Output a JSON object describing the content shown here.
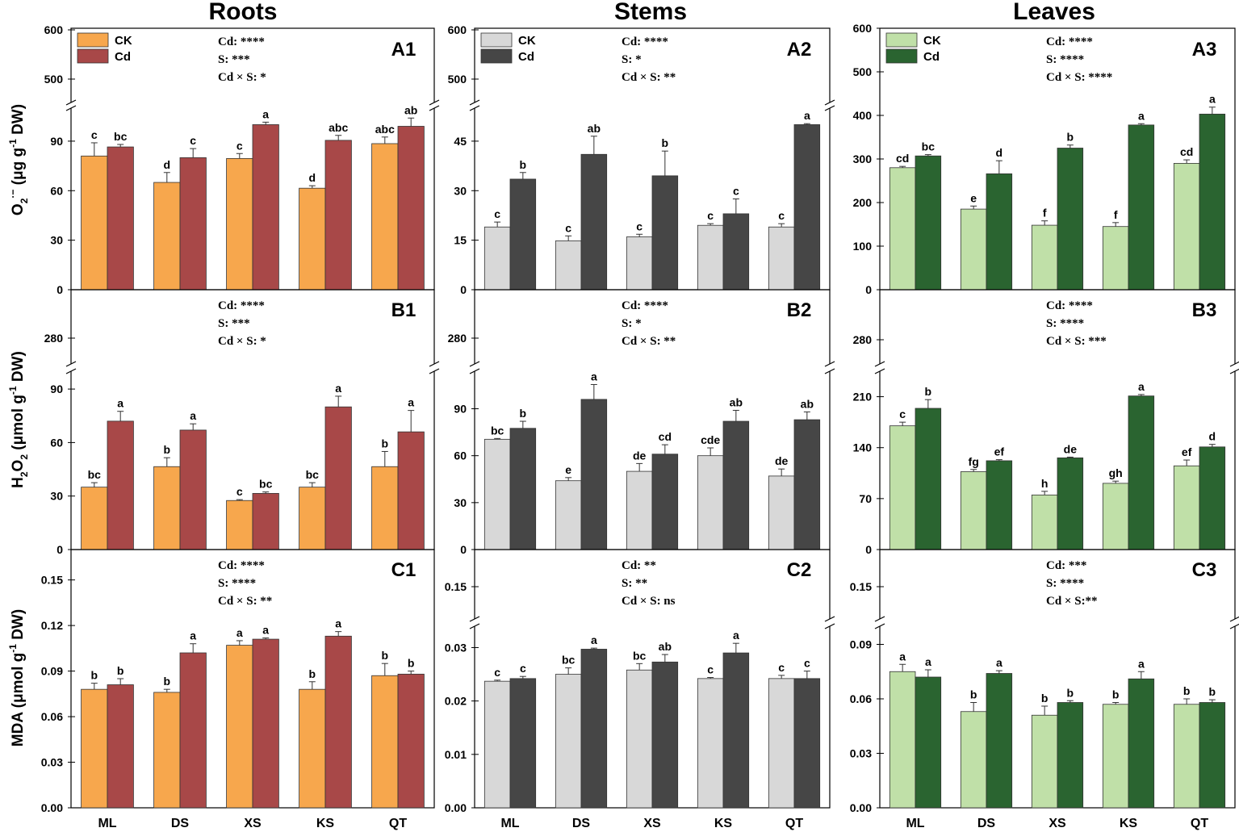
{
  "columns": [
    "Roots",
    "Stems",
    "Leaves"
  ],
  "y_axis_titles": [
    {
      "prefix": "O",
      "sub": "2",
      "sup": "·−",
      "mid": " (μg g",
      "sup2": "-1",
      "suffix": " DW)"
    },
    {
      "prefix": "H",
      "sub": "2",
      "mid2": "O",
      "sub2": "2",
      "mid": " (μmol g",
      "sup2": "-1",
      "suffix": " DW)"
    },
    {
      "prefix": "MDA",
      "mid": " (μmol g",
      "sup2": "-1",
      "suffix": " DW)"
    }
  ],
  "legend": {
    "ck": "CK",
    "cd": "Cd"
  },
  "colors": {
    "Roots": {
      "ck": "#f7a74d",
      "cd": "#a84848"
    },
    "Stems": {
      "ck": "#d8d8d8",
      "cd": "#464646"
    },
    "Leaves": {
      "ck": "#c0e0a8",
      "cd": "#2a6430"
    }
  },
  "chart_data": [
    {
      "id": "A1",
      "type": "bar",
      "organ": "Roots",
      "metric": "O2·− (μg g-1 DW)",
      "categories": [
        "ML",
        "DS",
        "XS",
        "KS",
        "QT"
      ],
      "series": [
        {
          "name": "CK",
          "values": [
            81,
            65,
            79.5,
            61.5,
            88.5
          ],
          "errors": [
            8,
            6,
            3,
            1.5,
            4
          ],
          "letters": [
            "c",
            "d",
            "c",
            "d",
            "abc"
          ]
        },
        {
          "name": "Cd",
          "values": [
            86.5,
            80,
            100,
            90.5,
            99
          ],
          "errors": [
            1.5,
            5.5,
            1.5,
            3,
            5
          ],
          "letters": [
            "bc",
            "c",
            "a",
            "abc",
            "ab"
          ]
        }
      ],
      "y_ticks_lower": [
        0,
        30,
        60,
        90
      ],
      "y_ticks_upper": [
        500,
        600
      ],
      "ylim_lower": [
        0,
        110
      ],
      "ylim_upper": [
        450,
        600
      ],
      "stats": [
        "Cd: ****",
        "S: ***",
        "Cd × S: *"
      ]
    },
    {
      "id": "A2",
      "type": "bar",
      "organ": "Stems",
      "metric": "O2·− (μg g-1 DW)",
      "categories": [
        "ML",
        "DS",
        "XS",
        "KS",
        "QT"
      ],
      "series": [
        {
          "name": "CK",
          "values": [
            19,
            14.8,
            16,
            19.5,
            19
          ],
          "errors": [
            1.5,
            1.5,
            0.8,
            0.5,
            1
          ],
          "letters": [
            "c",
            "c",
            "c",
            "c",
            "c"
          ]
        },
        {
          "name": "Cd",
          "values": [
            33.5,
            41,
            34.5,
            23,
            50
          ],
          "errors": [
            2,
            5.5,
            7.5,
            4.5,
            0.3
          ],
          "letters": [
            "b",
            "ab",
            "b",
            "c",
            "a"
          ]
        }
      ],
      "y_ticks_lower": [
        0,
        15,
        30,
        45
      ],
      "y_ticks_upper": [
        500,
        600
      ],
      "ylim_lower": [
        0,
        55
      ],
      "ylim_upper": [
        450,
        600
      ],
      "stats": [
        "Cd: ****",
        "S: *",
        "Cd × S: **"
      ]
    },
    {
      "id": "A3",
      "type": "bar",
      "organ": "Leaves",
      "metric": "O2·− (μg g-1 DW)",
      "categories": [
        "ML",
        "DS",
        "XS",
        "KS",
        "QT"
      ],
      "series": [
        {
          "name": "CK",
          "values": [
            280,
            185,
            148,
            145,
            290
          ],
          "errors": [
            3,
            7,
            10,
            9,
            8
          ],
          "letters": [
            "cd",
            "e",
            "f",
            "f",
            "cd"
          ]
        },
        {
          "name": "Cd",
          "values": [
            307,
            266,
            325,
            378,
            403
          ],
          "errors": [
            3,
            30,
            7,
            3,
            16
          ],
          "letters": [
            "bc",
            "d",
            "b",
            "a",
            "a"
          ]
        }
      ],
      "y_ticks_lower": [
        0,
        100,
        200,
        300,
        400,
        500,
        600
      ],
      "ylim_lower": [
        0,
        600
      ],
      "stats": [
        "Cd: ****",
        "S: ****",
        "Cd × S: ****"
      ]
    },
    {
      "id": "B1",
      "type": "bar",
      "organ": "Roots",
      "metric": "H2O2 (μmol g-1 DW)",
      "categories": [
        "ML",
        "DS",
        "XS",
        "KS",
        "QT"
      ],
      "series": [
        {
          "name": "CK",
          "values": [
            35,
            46.5,
            27.5,
            35,
            46.5
          ],
          "errors": [
            2.5,
            5,
            0.5,
            2.5,
            8.5
          ],
          "letters": [
            "bc",
            "b",
            "c",
            "bc",
            "b"
          ]
        },
        {
          "name": "Cd",
          "values": [
            72,
            67,
            31.5,
            80,
            66
          ],
          "errors": [
            5.5,
            3.5,
            0.8,
            6,
            12
          ],
          "letters": [
            "a",
            "a",
            "bc",
            "a",
            "a"
          ]
        }
      ],
      "y_ticks_lower": [
        0,
        30,
        60,
        90
      ],
      "y_ticks_upper": [
        280
      ],
      "ylim_lower": [
        0,
        100
      ],
      "ylim_upper": [
        250,
        300
      ],
      "stats": [
        "Cd: ****",
        "S: ***",
        "Cd × S: *"
      ]
    },
    {
      "id": "B2",
      "type": "bar",
      "organ": "Stems",
      "metric": "H2O2 (μmol g-1 DW)",
      "categories": [
        "ML",
        "DS",
        "XS",
        "KS",
        "QT"
      ],
      "series": [
        {
          "name": "CK",
          "values": [
            70.5,
            44,
            50,
            60,
            47
          ],
          "errors": [
            0.5,
            2,
            5,
            5,
            4.5
          ],
          "letters": [
            "bc",
            "e",
            "de",
            "cde",
            "de"
          ]
        },
        {
          "name": "Cd",
          "values": [
            77.5,
            96,
            61,
            82,
            83
          ],
          "errors": [
            4.5,
            9.5,
            6,
            7,
            5
          ],
          "letters": [
            "b",
            "a",
            "cd",
            "ab",
            "ab"
          ]
        }
      ],
      "y_ticks_lower": [
        0,
        30,
        60,
        90
      ],
      "y_ticks_upper": [
        280
      ],
      "ylim_lower": [
        0,
        114
      ],
      "ylim_upper": [
        250,
        310
      ],
      "stats": [
        "Cd: ****",
        "S: *",
        "Cd × S: **"
      ]
    },
    {
      "id": "B3",
      "type": "bar",
      "organ": "Leaves",
      "metric": "H2O2 (μmol g-1 DW)",
      "categories": [
        "ML",
        "DS",
        "XS",
        "KS",
        "QT"
      ],
      "series": [
        {
          "name": "CK",
          "values": [
            170,
            107,
            75,
            91,
            115
          ],
          "errors": [
            5,
            3,
            5,
            3,
            8
          ],
          "letters": [
            "c",
            "fg",
            "h",
            "gh",
            "ef"
          ]
        },
        {
          "name": "Cd",
          "values": [
            194,
            122,
            126,
            211,
            141
          ],
          "errors": [
            12,
            1.5,
            1,
            2,
            3.5
          ],
          "letters": [
            "b",
            "ef",
            "de",
            "a",
            "d"
          ]
        }
      ],
      "y_ticks_lower": [
        0,
        70,
        140,
        210
      ],
      "y_ticks_upper": [
        280
      ],
      "ylim_lower": [
        0,
        245
      ],
      "ylim_upper": [
        250,
        320
      ],
      "stats": [
        "Cd: ****",
        "S: ****",
        "Cd × S: ***"
      ]
    },
    {
      "id": "C1",
      "type": "bar",
      "organ": "Roots",
      "metric": "MDA (μmol g-1 DW)",
      "categories": [
        "ML",
        "DS",
        "XS",
        "KS",
        "QT"
      ],
      "series": [
        {
          "name": "CK",
          "values": [
            0.078,
            0.076,
            0.107,
            0.078,
            0.087
          ],
          "errors": [
            0.004,
            0.002,
            0.003,
            0.005,
            0.008
          ],
          "letters": [
            "b",
            "b",
            "a",
            "b",
            "b"
          ]
        },
        {
          "name": "Cd",
          "values": [
            0.081,
            0.102,
            0.111,
            0.113,
            0.088
          ],
          "errors": [
            0.004,
            0.006,
            0.0008,
            0.003,
            0.002
          ],
          "letters": [
            "b",
            "a",
            "a",
            "a",
            "b"
          ]
        }
      ],
      "y_ticks_lower": [
        0.0,
        0.03,
        0.06,
        0.09,
        0.12,
        0.15
      ],
      "ylim_lower": [
        0,
        0.17
      ],
      "stats": [
        "Cd: ****",
        "S: ****",
        "Cd × S: **"
      ]
    },
    {
      "id": "C2",
      "type": "bar",
      "organ": "Stems",
      "metric": "MDA (μmol g-1 DW)",
      "categories": [
        "ML",
        "DS",
        "XS",
        "KS",
        "QT"
      ],
      "series": [
        {
          "name": "CK",
          "values": [
            0.0237,
            0.025,
            0.0258,
            0.0242,
            0.0242
          ],
          "errors": [
            0.0002,
            0.0012,
            0.0012,
            0.0002,
            0.0006
          ],
          "letters": [
            "c",
            "bc",
            "bc",
            "c",
            "c"
          ]
        },
        {
          "name": "Cd",
          "values": [
            0.0242,
            0.0297,
            0.0273,
            0.029,
            0.0242
          ],
          "errors": [
            0.0004,
            0.0002,
            0.0014,
            0.0018,
            0.0014
          ],
          "letters": [
            "c",
            "a",
            "ab",
            "a",
            "c"
          ]
        }
      ],
      "y_ticks_lower": [
        0.0,
        0.01,
        0.02,
        0.03
      ],
      "y_ticks_upper": [
        0.15
      ],
      "ylim_lower": [
        0,
        0.034
      ],
      "ylim_upper": [
        0.13,
        0.17
      ],
      "stats": [
        "Cd: **",
        "S: **",
        "Cd × S: ns"
      ]
    },
    {
      "id": "C3",
      "type": "bar",
      "organ": "Leaves",
      "metric": "MDA (μmol g-1 DW)",
      "categories": [
        "ML",
        "DS",
        "XS",
        "KS",
        "QT"
      ],
      "series": [
        {
          "name": "CK",
          "values": [
            0.075,
            0.053,
            0.051,
            0.057,
            0.057
          ],
          "errors": [
            0.004,
            0.005,
            0.005,
            0.001,
            0.003
          ],
          "letters": [
            "a",
            "b",
            "b",
            "b",
            "b"
          ]
        },
        {
          "name": "Cd",
          "values": [
            0.072,
            0.074,
            0.058,
            0.071,
            0.058
          ],
          "errors": [
            0.004,
            0.0015,
            0.001,
            0.004,
            0.0015
          ],
          "letters": [
            "a",
            "a",
            "b",
            "a",
            "b"
          ]
        }
      ],
      "y_ticks_lower": [
        0.0,
        0.03,
        0.06,
        0.09
      ],
      "y_ticks_upper": [
        0.15
      ],
      "ylim_lower": [
        0,
        0.1
      ],
      "ylim_upper": [
        0.13,
        0.17
      ],
      "stats": [
        "Cd: ***",
        "S: ****",
        "Cd × S:**"
      ]
    }
  ]
}
